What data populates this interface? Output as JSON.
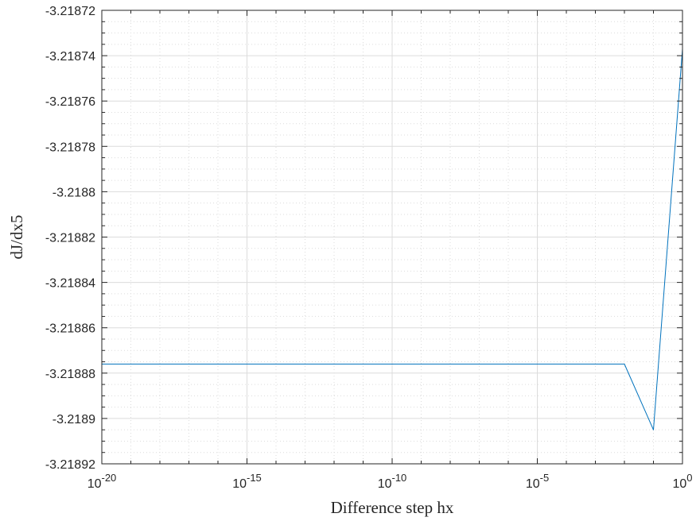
{
  "chart_data": {
    "type": "line",
    "xlabel": "Difference step hx",
    "ylabel": "dJ/dx5",
    "xscale": "log",
    "xlim": [
      1e-20,
      1
    ],
    "ylim": [
      -3.21892,
      -3.21872
    ],
    "grid": true,
    "minor_grid": true,
    "x_ticks": [
      {
        "base": "10",
        "exp": "-20"
      },
      {
        "base": "10",
        "exp": "-15"
      },
      {
        "base": "10",
        "exp": "-10"
      },
      {
        "base": "10",
        "exp": "-5"
      },
      {
        "base": "10",
        "exp": "0"
      }
    ],
    "y_ticks": [
      "-3.21872",
      "-3.21874",
      "-3.21876",
      "-3.21878",
      "-3.2188",
      "-3.21882",
      "-3.21884",
      "-3.21886",
      "-3.21888",
      "-3.2189",
      "-3.21892"
    ],
    "series": [
      {
        "color": "#0072BD",
        "x": [
          1e-20,
          1e-19,
          1e-18,
          1e-17,
          1e-16,
          1e-15,
          1e-14,
          1e-13,
          1e-12,
          1e-11,
          1e-10,
          1e-09,
          1e-08,
          1e-07,
          1e-06,
          1e-05,
          0.0001,
          0.001,
          0.01,
          0.1,
          1
        ],
        "y": [
          -3.218876,
          -3.218876,
          -3.218876,
          -3.218876,
          -3.218876,
          -3.218876,
          -3.218876,
          -3.218876,
          -3.218876,
          -3.218876,
          -3.218876,
          -3.218876,
          -3.218876,
          -3.218876,
          -3.218876,
          -3.218876,
          -3.218876,
          -3.218876,
          -3.218876,
          -3.218905,
          -3.218737
        ]
      }
    ]
  },
  "colors": {
    "line": "#0072BD",
    "axis": "#262626",
    "grid": "#dcdcdc"
  }
}
